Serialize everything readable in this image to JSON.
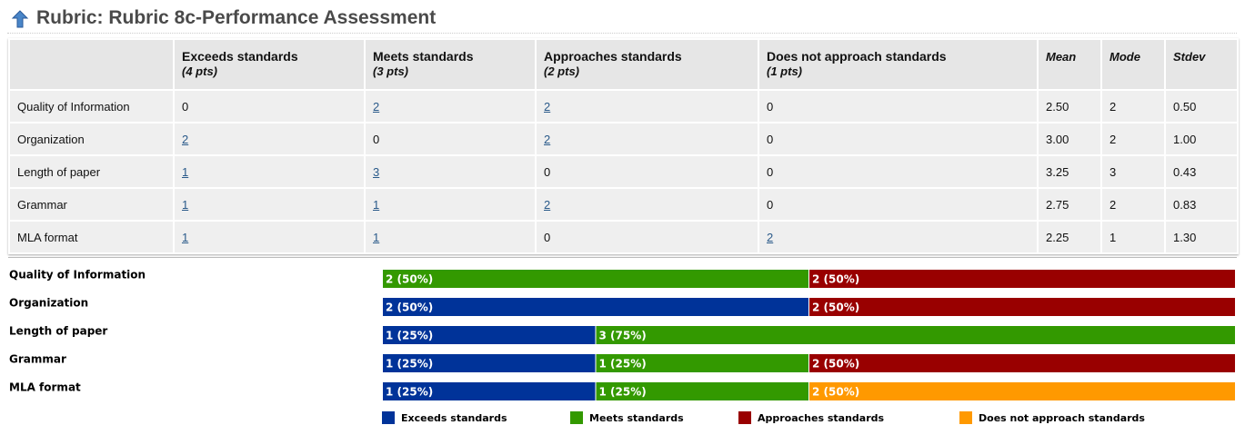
{
  "header": {
    "title": "Rubric: Rubric 8c-Performance Assessment"
  },
  "table": {
    "columns": [
      {
        "name": "Exceeds standards",
        "points": "(4 pts)"
      },
      {
        "name": "Meets standards",
        "points": "(3 pts)"
      },
      {
        "name": "Approaches standards",
        "points": "(2 pts)"
      },
      {
        "name": "Does not approach standards",
        "points": "(1 pts)"
      }
    ],
    "stats": [
      "Mean",
      "Mode",
      "Stdev"
    ],
    "rows": [
      {
        "label": "Quality of Information",
        "counts": [
          0,
          2,
          2,
          0
        ],
        "mean": "2.50",
        "mode": 2,
        "stdev": "0.50"
      },
      {
        "label": "Organization",
        "counts": [
          2,
          0,
          2,
          0
        ],
        "mean": "3.00",
        "mode": 2,
        "stdev": "1.00"
      },
      {
        "label": "Length of paper",
        "counts": [
          1,
          3,
          0,
          0
        ],
        "mean": "3.25",
        "mode": 3,
        "stdev": "0.43"
      },
      {
        "label": "Grammar",
        "counts": [
          1,
          1,
          2,
          0
        ],
        "mean": "2.75",
        "mode": 2,
        "stdev": "0.83"
      },
      {
        "label": "MLA format",
        "counts": [
          1,
          1,
          0,
          2
        ],
        "mean": "2.25",
        "mode": 1,
        "stdev": "1.30"
      }
    ]
  },
  "chart_data": {
    "type": "bar",
    "stacked": true,
    "orientation": "horizontal",
    "categories": [
      "Quality of Information",
      "Organization",
      "Length of paper",
      "Grammar",
      "MLA format"
    ],
    "series": [
      {
        "name": "Exceeds standards",
        "color": "#003399",
        "values": [
          null,
          2,
          1,
          1,
          1
        ],
        "value_labels": [
          null,
          "2 (50%)",
          "1 (25%)",
          "1 (25%)",
          "1 (25%)"
        ]
      },
      {
        "name": "Meets standards",
        "color": "#339900",
        "values": [
          2,
          null,
          3,
          1,
          1
        ],
        "value_labels": [
          "2 (50%)",
          null,
          "3 (75%)",
          "1 (25%)",
          "1 (25%)"
        ]
      },
      {
        "name": "Approaches standards",
        "color": "#990000",
        "values": [
          2,
          2,
          null,
          2,
          null
        ],
        "value_labels": [
          "2 (50%)",
          "2 (50%)",
          null,
          "2 (50%)",
          null
        ]
      },
      {
        "name": "Does not approach standards",
        "color": "#ff9900",
        "values": [
          null,
          null,
          null,
          null,
          2
        ],
        "value_labels": [
          null,
          null,
          null,
          null,
          "2 (50%)"
        ]
      }
    ]
  }
}
